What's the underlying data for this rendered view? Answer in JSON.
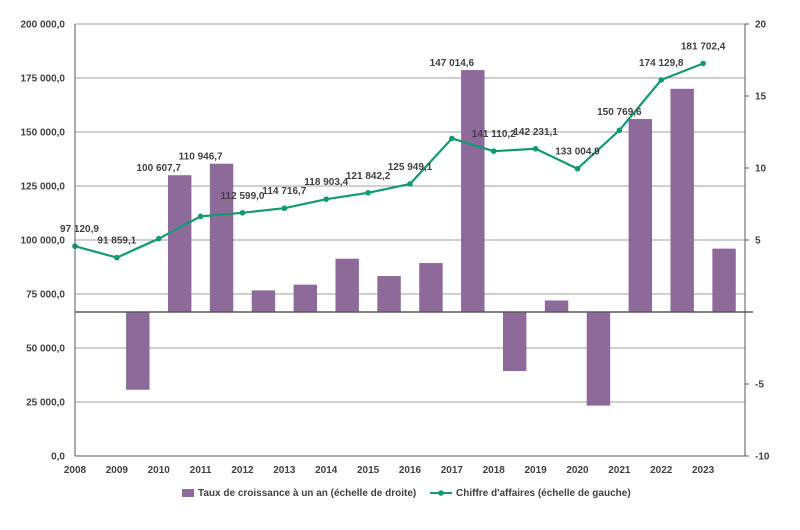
{
  "chart_data": {
    "type": "bar+line",
    "categories": [
      "2008",
      "2009",
      "2010",
      "2011",
      "2012",
      "2013",
      "2014",
      "2015",
      "2016",
      "2017",
      "2018",
      "2019",
      "2020",
      "2021",
      "2022",
      "2023"
    ],
    "series": [
      {
        "name": "Taux de croissance à un an (échelle de droite)",
        "type": "bar",
        "axis": "right",
        "color": "#8e6a9b",
        "values": [
          null,
          -5.4,
          9.5,
          10.3,
          1.5,
          1.9,
          3.7,
          2.5,
          3.4,
          16.8,
          -4.1,
          0.8,
          -6.5,
          13.4,
          15.5,
          4.4
        ]
      },
      {
        "name": "Chiffre d'affaires (échelle de gauche)",
        "type": "line",
        "axis": "left",
        "color": "#129a72",
        "values": [
          97120.9,
          91859.1,
          100607.7,
          110946.7,
          112599.0,
          114716.7,
          118903.4,
          121842.2,
          125949.1,
          147014.6,
          141110.2,
          142231.1,
          133004.9,
          150769.6,
          174129.8,
          181702.4
        ],
        "labels": [
          "97 120,9",
          "91 859,1",
          "100 607,7",
          "110 946,7",
          "112 599,0",
          "114 716,7",
          "118 903,4",
          "121 842,2",
          "125 949,1",
          "147 014,6",
          "141 110,2",
          "142 231,1",
          "133 004,9",
          "150 769,6",
          "174 129,8",
          "181 702,4"
        ]
      }
    ],
    "left_axis": {
      "min": 0,
      "max": 200000,
      "step": 25000,
      "tick_labels": [
        "0,0",
        "25 000,0",
        "50 000,0",
        "75 000,0",
        "100 000,0",
        "125 000,0",
        "150 000,0",
        "175 000,0",
        "200 000,0"
      ]
    },
    "right_axis": {
      "min": -10,
      "max": 20,
      "step": 5,
      "tick_labels": [
        "-10",
        "-5",
        "",
        "5",
        "10",
        "15",
        "20"
      ]
    },
    "grid": true,
    "legend_position": "bottom"
  }
}
